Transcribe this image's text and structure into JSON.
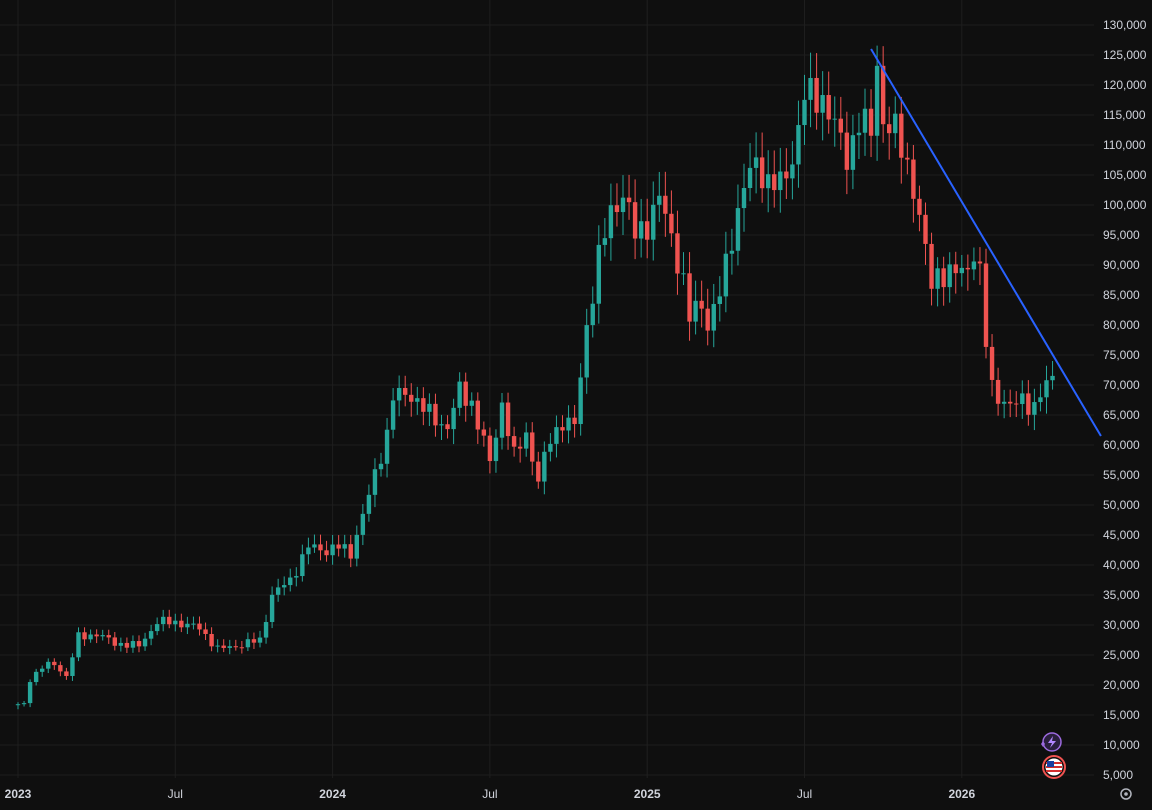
{
  "colors": {
    "background": "#0f0f0f",
    "grid": "#1e1e1e",
    "up": "#26a69a",
    "down": "#ef5350",
    "axis_text": "#d1d4dc",
    "trendline": "#2962ff"
  },
  "icons": {
    "alert": "lightning-alert-icon",
    "flag": "us-flag-icon",
    "settings": "settings-gear-icon"
  },
  "chart_data": {
    "type": "candlestick",
    "title": "",
    "xlabel": "",
    "ylabel": "",
    "interval": "weekly",
    "ylim": [
      4000,
      132000
    ],
    "grid": true,
    "x_ticks": [
      {
        "label": "2023",
        "index": 0
      },
      {
        "label": "Jul",
        "index": 26
      },
      {
        "label": "2024",
        "index": 52
      },
      {
        "label": "Jul",
        "index": 78
      },
      {
        "label": "2025",
        "index": 104
      },
      {
        "label": "Jul",
        "index": 130
      },
      {
        "label": "2026",
        "index": 156
      }
    ],
    "y_ticks": [
      {
        "value": 130000,
        "label": "130,000"
      },
      {
        "value": 125000,
        "label": "125,000"
      },
      {
        "value": 120000,
        "label": "120,000"
      },
      {
        "value": 115000,
        "label": "115,000"
      },
      {
        "value": 110000,
        "label": "110,000"
      },
      {
        "value": 105000,
        "label": "105,000"
      },
      {
        "value": 100000,
        "label": "100,000"
      },
      {
        "value": 95000,
        "label": "95,000"
      },
      {
        "value": 90000,
        "label": "90,000"
      },
      {
        "value": 85000,
        "label": "85,000"
      },
      {
        "value": 80000,
        "label": "80,000"
      },
      {
        "value": 75000,
        "label": "75,000"
      },
      {
        "value": 70000,
        "label": "70,000"
      },
      {
        "value": 65000,
        "label": "65,000"
      },
      {
        "value": 60000,
        "label": "60,000"
      },
      {
        "value": 55000,
        "label": "55,000"
      },
      {
        "value": 50000,
        "label": "50,000"
      },
      {
        "value": 45000,
        "label": "45,000"
      },
      {
        "value": 40000,
        "label": "40,000"
      },
      {
        "value": 35000,
        "label": "35,000"
      },
      {
        "value": 30000,
        "label": "30,000"
      },
      {
        "value": 25000,
        "label": "25,000"
      },
      {
        "value": 20000,
        "label": "20,000"
      },
      {
        "value": 15000,
        "label": "15,000"
      },
      {
        "value": 10000,
        "label": "10,000"
      },
      {
        "value": 5000,
        "label": "5,000"
      }
    ],
    "waypoints": [
      [
        0,
        16600
      ],
      [
        1,
        16800
      ],
      [
        2,
        21000
      ],
      [
        4,
        23000
      ],
      [
        6,
        23500
      ],
      [
        8,
        21500
      ],
      [
        10,
        28000
      ],
      [
        13,
        28500
      ],
      [
        16,
        27000
      ],
      [
        20,
        26500
      ],
      [
        23,
        30500
      ],
      [
        26,
        30500
      ],
      [
        30,
        29500
      ],
      [
        33,
        26000
      ],
      [
        36,
        26500
      ],
      [
        40,
        27500
      ],
      [
        42,
        35000
      ],
      [
        45,
        37500
      ],
      [
        48,
        43000
      ],
      [
        51,
        42500
      ],
      [
        53,
        43000
      ],
      [
        55,
        42000
      ],
      [
        58,
        51500
      ],
      [
        61,
        62000
      ],
      [
        62,
        68000
      ],
      [
        65,
        68500
      ],
      [
        68,
        65000
      ],
      [
        71,
        63000
      ],
      [
        73,
        69000
      ],
      [
        75,
        67000
      ],
      [
        78,
        57000
      ],
      [
        80,
        67000
      ],
      [
        82,
        58000
      ],
      [
        84,
        62000
      ],
      [
        86,
        54000
      ],
      [
        88,
        61000
      ],
      [
        90,
        64000
      ],
      [
        92,
        63000
      ],
      [
        94,
        80000
      ],
      [
        96,
        91000
      ],
      [
        98,
        99000
      ],
      [
        100,
        102000
      ],
      [
        102,
        95000
      ],
      [
        104,
        97000
      ],
      [
        106,
        101000
      ],
      [
        108,
        95000
      ],
      [
        110,
        87000
      ],
      [
        111,
        81000
      ],
      [
        113,
        84000
      ],
      [
        114,
        80000
      ],
      [
        116,
        85000
      ],
      [
        118,
        95000
      ],
      [
        120,
        103000
      ],
      [
        122,
        107000
      ],
      [
        124,
        104000
      ],
      [
        126,
        103000
      ],
      [
        128,
        108000
      ],
      [
        130,
        118000
      ],
      [
        133,
        118000
      ],
      [
        135,
        113000
      ],
      [
        137,
        108000
      ],
      [
        139,
        114000
      ],
      [
        141,
        112000
      ],
      [
        142,
        124000
      ],
      [
        143,
        114000
      ],
      [
        145,
        112000
      ],
      [
        147,
        107000
      ],
      [
        148,
        103000
      ],
      [
        150,
        92000
      ],
      [
        151,
        87000
      ],
      [
        152,
        89000
      ],
      [
        154,
        88000
      ],
      [
        157,
        90000
      ],
      [
        158,
        92000
      ],
      [
        159,
        88000
      ],
      [
        160,
        77000
      ],
      [
        161,
        70000
      ],
      [
        163,
        67000
      ],
      [
        164,
        66000
      ],
      [
        166,
        68000
      ],
      [
        168,
        66000
      ],
      [
        170,
        70000
      ],
      [
        171,
        72000
      ]
    ],
    "trendline": {
      "from": [
        141,
        126000
      ],
      "to": [
        179,
        61500
      ]
    }
  }
}
